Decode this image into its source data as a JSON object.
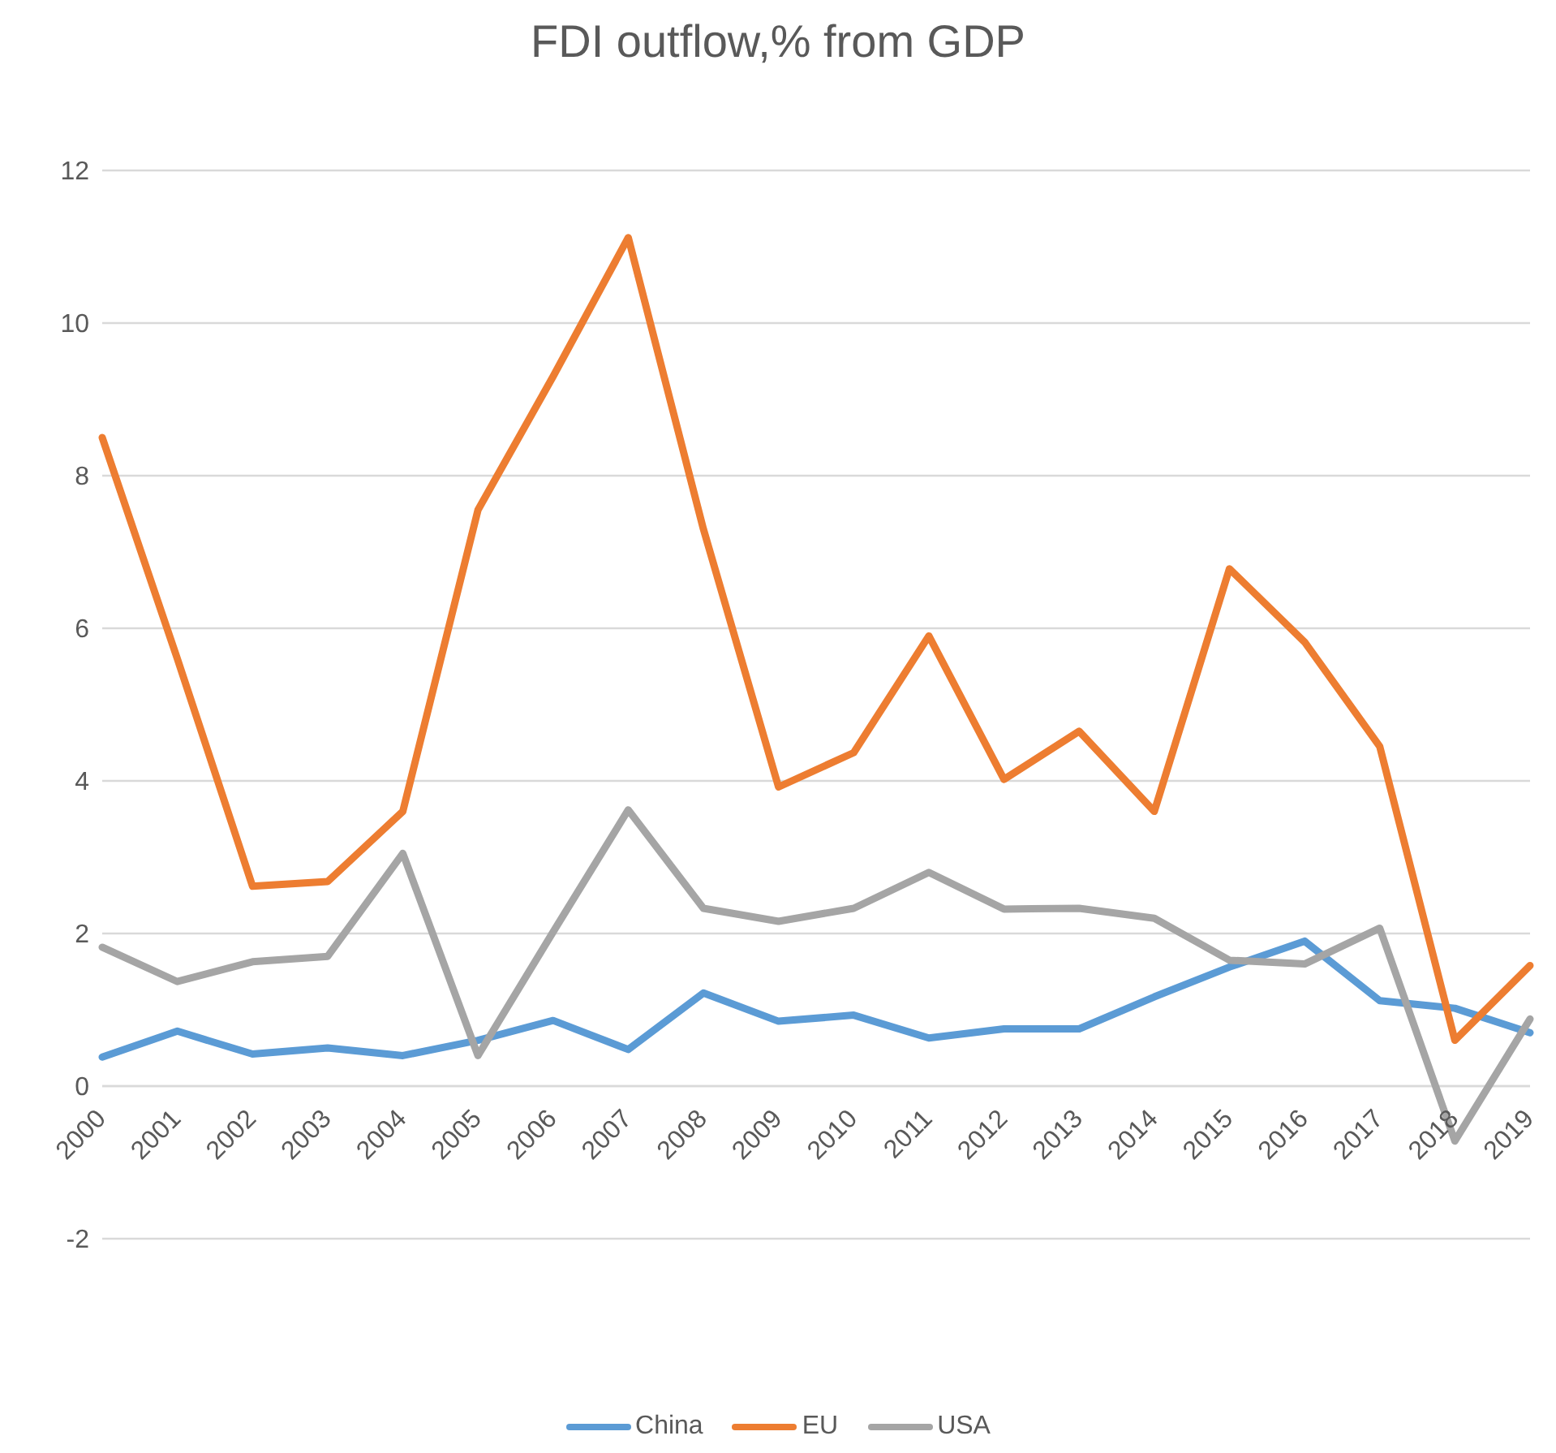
{
  "chart_data": {
    "type": "line",
    "title": "FDI outflow,% from GDP",
    "categories": [
      "2000",
      "2001",
      "2002",
      "2003",
      "2004",
      "2005",
      "2006",
      "2007",
      "2008",
      "2009",
      "2010",
      "2011",
      "2012",
      "2013",
      "2014",
      "2015",
      "2016",
      "2017",
      "2018",
      "2019"
    ],
    "series": [
      {
        "name": "China",
        "color": "#5b9bd5",
        "values": [
          0.38,
          0.72,
          0.42,
          0.5,
          0.4,
          0.6,
          0.86,
          0.48,
          1.22,
          0.85,
          0.93,
          0.63,
          0.75,
          0.75,
          1.17,
          1.56,
          1.9,
          1.12,
          1.02,
          0.7
        ]
      },
      {
        "name": "EU",
        "color": "#ed7d31",
        "values": [
          8.5,
          5.6,
          2.62,
          2.68,
          3.6,
          7.55,
          9.3,
          11.12,
          7.3,
          3.92,
          4.37,
          5.9,
          4.02,
          4.65,
          3.6,
          6.78,
          5.82,
          4.45,
          0.6,
          1.58
        ]
      },
      {
        "name": "USA",
        "color": "#a5a5a5",
        "values": [
          1.82,
          1.37,
          1.63,
          1.7,
          3.05,
          0.4,
          2.02,
          3.62,
          2.33,
          2.16,
          2.33,
          2.8,
          2.32,
          2.33,
          2.2,
          1.65,
          1.6,
          2.07,
          -0.72,
          0.88
        ]
      }
    ],
    "ylim": [
      -2,
      12
    ],
    "yticks": [
      -2,
      0,
      2,
      4,
      6,
      8,
      10,
      12
    ],
    "grid": "y",
    "legend": "bottom",
    "marker": "none",
    "line_style": "solid"
  }
}
